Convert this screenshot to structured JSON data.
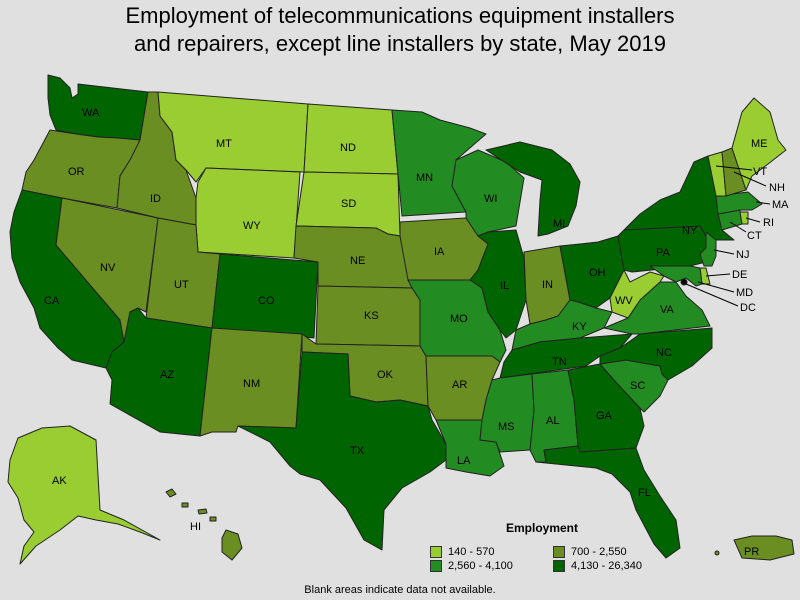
{
  "title_line1": "Employment of telecommunications equipment installers",
  "title_line2": "and repairers, except line installers by state, May 2019",
  "legend": {
    "title": "Employment",
    "items": [
      {
        "label": "140 - 570",
        "color": "#9acd32"
      },
      {
        "label": "700 - 2,550",
        "color": "#6b8e23"
      },
      {
        "label": "2,560 - 4,100",
        "color": "#228b22"
      },
      {
        "label": "4,130 - 26,340",
        "color": "#006400"
      }
    ]
  },
  "footnote": "Blank areas indicate data not available.",
  "states": {
    "WA": {
      "label": "WA",
      "class": 4
    },
    "OR": {
      "label": "OR",
      "class": 2
    },
    "CA": {
      "label": "CA",
      "class": 4
    },
    "NV": {
      "label": "NV",
      "class": 2
    },
    "ID": {
      "label": "ID",
      "class": 2
    },
    "MT": {
      "label": "MT",
      "class": 1
    },
    "WY": {
      "label": "WY",
      "class": 1
    },
    "UT": {
      "label": "UT",
      "class": 2
    },
    "AZ": {
      "label": "AZ",
      "class": 4
    },
    "CO": {
      "label": "CO",
      "class": 4
    },
    "NM": {
      "label": "NM",
      "class": 2
    },
    "ND": {
      "label": "ND",
      "class": 1
    },
    "SD": {
      "label": "SD",
      "class": 1
    },
    "NE": {
      "label": "NE",
      "class": 2
    },
    "KS": {
      "label": "KS",
      "class": 2
    },
    "OK": {
      "label": "OK",
      "class": 2
    },
    "TX": {
      "label": "TX",
      "class": 4
    },
    "MN": {
      "label": "MN",
      "class": 3
    },
    "IA": {
      "label": "IA",
      "class": 2
    },
    "MO": {
      "label": "MO",
      "class": 3
    },
    "AR": {
      "label": "AR",
      "class": 2
    },
    "LA": {
      "label": "LA",
      "class": 3
    },
    "WI": {
      "label": "WI",
      "class": 3
    },
    "IL": {
      "label": "IL",
      "class": 4
    },
    "MI": {
      "label": "MI",
      "class": 4
    },
    "IN": {
      "label": "IN",
      "class": 2
    },
    "OH": {
      "label": "OH",
      "class": 4
    },
    "KY": {
      "label": "KY",
      "class": 3
    },
    "TN": {
      "label": "TN",
      "class": 4
    },
    "MS": {
      "label": "MS",
      "class": 3
    },
    "AL": {
      "label": "AL",
      "class": 3
    },
    "GA": {
      "label": "GA",
      "class": 4
    },
    "FL": {
      "label": "FL",
      "class": 4
    },
    "SC": {
      "label": "SC",
      "class": 3
    },
    "NC": {
      "label": "NC",
      "class": 4
    },
    "VA": {
      "label": "VA",
      "class": 3
    },
    "WV": {
      "label": "WV",
      "class": 1
    },
    "PA": {
      "label": "PA",
      "class": 4
    },
    "NY": {
      "label": "NY",
      "class": 4
    },
    "NJ": {
      "label": "NJ",
      "class": 3
    },
    "DE": {
      "label": "DE",
      "class": 1
    },
    "MD": {
      "label": "MD",
      "class": 3
    },
    "DC": {
      "label": "DC",
      "class": 4
    },
    "CT": {
      "label": "CT",
      "class": 3
    },
    "RI": {
      "label": "RI",
      "class": 1
    },
    "MA": {
      "label": "MA",
      "class": 3
    },
    "VT": {
      "label": "VT",
      "class": 1
    },
    "NH": {
      "label": "NH",
      "class": 2
    },
    "ME": {
      "label": "ME",
      "class": 1
    },
    "AK": {
      "label": "AK",
      "class": 1
    },
    "HI": {
      "label": "HI",
      "class": 2
    },
    "PR": {
      "label": "PR",
      "class": 2
    }
  }
}
